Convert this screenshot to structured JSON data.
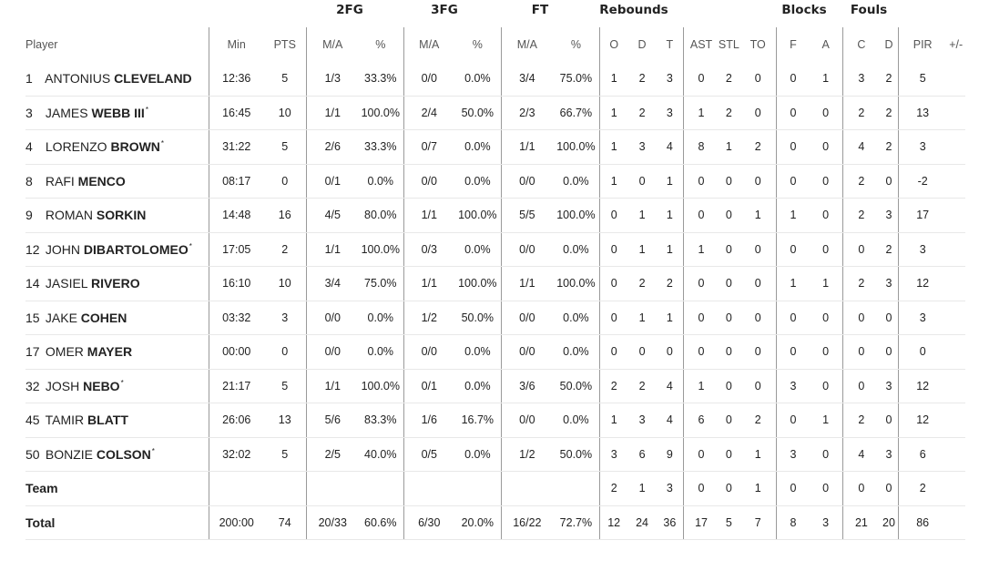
{
  "groups": {
    "fg2": "2FG",
    "fg3": "3FG",
    "ft": "FT",
    "reb": "Rebounds",
    "blk": "Blocks",
    "fouls": "Fouls"
  },
  "columns": {
    "player": "Player",
    "min": "Min",
    "pts": "PTS",
    "fg2_ma": "M/A",
    "fg2_pct": "%",
    "fg3_ma": "M/A",
    "fg3_pct": "%",
    "ft_ma": "M/A",
    "ft_pct": "%",
    "o": "O",
    "d": "D",
    "t": "T",
    "ast": "AST",
    "stl": "STL",
    "to": "TO",
    "f": "F",
    "a": "A",
    "c": "C",
    "fd": "D",
    "pir": "PIR",
    "pm": "+/-"
  },
  "players": [
    {
      "no": "1",
      "first": "ANTONIUS",
      "last": "CLEVELAND",
      "star": "",
      "min": "12:36",
      "pts": "5",
      "fg2": "1/3",
      "fg2p": "33.3%",
      "fg3": "0/0",
      "fg3p": "0.0%",
      "ft": "3/4",
      "ftp": "75.0%",
      "o": "1",
      "d": "2",
      "t": "3",
      "ast": "0",
      "stl": "2",
      "to": "0",
      "f": "0",
      "a": "1",
      "c": "3",
      "fd": "2",
      "pir": "5",
      "pm": ""
    },
    {
      "no": "3",
      "first": "JAMES",
      "last": "WEBB III",
      "star": "*",
      "min": "16:45",
      "pts": "10",
      "fg2": "1/1",
      "fg2p": "100.0%",
      "fg3": "2/4",
      "fg3p": "50.0%",
      "ft": "2/3",
      "ftp": "66.7%",
      "o": "1",
      "d": "2",
      "t": "3",
      "ast": "1",
      "stl": "2",
      "to": "0",
      "f": "0",
      "a": "0",
      "c": "2",
      "fd": "2",
      "pir": "13",
      "pm": ""
    },
    {
      "no": "4",
      "first": "LORENZO",
      "last": "BROWN",
      "star": "*",
      "min": "31:22",
      "pts": "5",
      "fg2": "2/6",
      "fg2p": "33.3%",
      "fg3": "0/7",
      "fg3p": "0.0%",
      "ft": "1/1",
      "ftp": "100.0%",
      "o": "1",
      "d": "3",
      "t": "4",
      "ast": "8",
      "stl": "1",
      "to": "2",
      "f": "0",
      "a": "0",
      "c": "4",
      "fd": "2",
      "pir": "3",
      "pm": ""
    },
    {
      "no": "8",
      "first": "RAFI",
      "last": "MENCO",
      "star": "",
      "min": "08:17",
      "pts": "0",
      "fg2": "0/1",
      "fg2p": "0.0%",
      "fg3": "0/0",
      "fg3p": "0.0%",
      "ft": "0/0",
      "ftp": "0.0%",
      "o": "1",
      "d": "0",
      "t": "1",
      "ast": "0",
      "stl": "0",
      "to": "0",
      "f": "0",
      "a": "0",
      "c": "2",
      "fd": "0",
      "pir": "-2",
      "pm": ""
    },
    {
      "no": "9",
      "first": "ROMAN",
      "last": "SORKIN",
      "star": "",
      "min": "14:48",
      "pts": "16",
      "fg2": "4/5",
      "fg2p": "80.0%",
      "fg3": "1/1",
      "fg3p": "100.0%",
      "ft": "5/5",
      "ftp": "100.0%",
      "o": "0",
      "d": "1",
      "t": "1",
      "ast": "0",
      "stl": "0",
      "to": "1",
      "f": "1",
      "a": "0",
      "c": "2",
      "fd": "3",
      "pir": "17",
      "pm": ""
    },
    {
      "no": "12",
      "first": "JOHN",
      "last": "DIBARTOLOMEO",
      "star": "*",
      "min": "17:05",
      "pts": "2",
      "fg2": "1/1",
      "fg2p": "100.0%",
      "fg3": "0/3",
      "fg3p": "0.0%",
      "ft": "0/0",
      "ftp": "0.0%",
      "o": "0",
      "d": "1",
      "t": "1",
      "ast": "1",
      "stl": "0",
      "to": "0",
      "f": "0",
      "a": "0",
      "c": "0",
      "fd": "2",
      "pir": "3",
      "pm": ""
    },
    {
      "no": "14",
      "first": "JASIEL",
      "last": "RIVERO",
      "star": "",
      "min": "16:10",
      "pts": "10",
      "fg2": "3/4",
      "fg2p": "75.0%",
      "fg3": "1/1",
      "fg3p": "100.0%",
      "ft": "1/1",
      "ftp": "100.0%",
      "o": "0",
      "d": "2",
      "t": "2",
      "ast": "0",
      "stl": "0",
      "to": "0",
      "f": "1",
      "a": "1",
      "c": "2",
      "fd": "3",
      "pir": "12",
      "pm": ""
    },
    {
      "no": "15",
      "first": "JAKE",
      "last": "COHEN",
      "star": "",
      "min": "03:32",
      "pts": "3",
      "fg2": "0/0",
      "fg2p": "0.0%",
      "fg3": "1/2",
      "fg3p": "50.0%",
      "ft": "0/0",
      "ftp": "0.0%",
      "o": "0",
      "d": "1",
      "t": "1",
      "ast": "0",
      "stl": "0",
      "to": "0",
      "f": "0",
      "a": "0",
      "c": "0",
      "fd": "0",
      "pir": "3",
      "pm": ""
    },
    {
      "no": "17",
      "first": "OMER",
      "last": "MAYER",
      "star": "",
      "min": "00:00",
      "pts": "0",
      "fg2": "0/0",
      "fg2p": "0.0%",
      "fg3": "0/0",
      "fg3p": "0.0%",
      "ft": "0/0",
      "ftp": "0.0%",
      "o": "0",
      "d": "0",
      "t": "0",
      "ast": "0",
      "stl": "0",
      "to": "0",
      "f": "0",
      "a": "0",
      "c": "0",
      "fd": "0",
      "pir": "0",
      "pm": ""
    },
    {
      "no": "32",
      "first": "JOSH",
      "last": "NEBO",
      "star": "*",
      "min": "21:17",
      "pts": "5",
      "fg2": "1/1",
      "fg2p": "100.0%",
      "fg3": "0/1",
      "fg3p": "0.0%",
      "ft": "3/6",
      "ftp": "50.0%",
      "o": "2",
      "d": "2",
      "t": "4",
      "ast": "1",
      "stl": "0",
      "to": "0",
      "f": "3",
      "a": "0",
      "c": "0",
      "fd": "3",
      "pir": "12",
      "pm": ""
    },
    {
      "no": "45",
      "first": "TAMIR",
      "last": "BLATT",
      "star": "",
      "min": "26:06",
      "pts": "13",
      "fg2": "5/6",
      "fg2p": "83.3%",
      "fg3": "1/6",
      "fg3p": "16.7%",
      "ft": "0/0",
      "ftp": "0.0%",
      "o": "1",
      "d": "3",
      "t": "4",
      "ast": "6",
      "stl": "0",
      "to": "2",
      "f": "0",
      "a": "1",
      "c": "2",
      "fd": "0",
      "pir": "12",
      "pm": ""
    },
    {
      "no": "50",
      "first": "BONZIE",
      "last": "COLSON",
      "star": "*",
      "min": "32:02",
      "pts": "5",
      "fg2": "2/5",
      "fg2p": "40.0%",
      "fg3": "0/5",
      "fg3p": "0.0%",
      "ft": "1/2",
      "ftp": "50.0%",
      "o": "3",
      "d": "6",
      "t": "9",
      "ast": "0",
      "stl": "0",
      "to": "1",
      "f": "3",
      "a": "0",
      "c": "4",
      "fd": "3",
      "pir": "6",
      "pm": ""
    }
  ],
  "team": {
    "label": "Team",
    "min": "",
    "pts": "",
    "fg2": "",
    "fg2p": "",
    "fg3": "",
    "fg3p": "",
    "ft": "",
    "ftp": "",
    "o": "2",
    "d": "1",
    "t": "3",
    "ast": "0",
    "stl": "0",
    "to": "1",
    "f": "0",
    "a": "0",
    "c": "0",
    "fd": "0",
    "pir": "2",
    "pm": ""
  },
  "total": {
    "label": "Total",
    "min": "200:00",
    "pts": "74",
    "fg2": "20/33",
    "fg2p": "60.6%",
    "fg3": "6/30",
    "fg3p": "20.0%",
    "ft": "16/22",
    "ftp": "72.7%",
    "o": "12",
    "d": "24",
    "t": "36",
    "ast": "17",
    "stl": "5",
    "to": "7",
    "f": "8",
    "a": "3",
    "c": "21",
    "fd": "20",
    "pir": "86",
    "pm": ""
  }
}
